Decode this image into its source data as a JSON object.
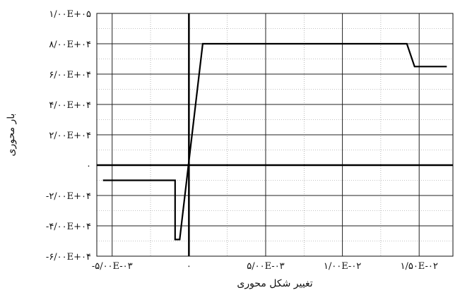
{
  "chart_data": {
    "type": "line",
    "title": "",
    "xlabel": "تغییر شکل محوری",
    "ylabel": "بار محوری",
    "xlim": [
      -0.006,
      0.0172
    ],
    "ylim": [
      -60000,
      100000
    ],
    "grid": true,
    "x_ticks": [
      {
        "value": -0.005,
        "label": "-۵/۰۰E-۰۳"
      },
      {
        "value": 0,
        "label": "۰"
      },
      {
        "value": 0.005,
        "label": "۵/۰۰E-۰۳"
      },
      {
        "value": 0.01,
        "label": "۱/۰۰E-۰۲"
      },
      {
        "value": 0.015,
        "label": "۱/۵۰E-۰۲"
      }
    ],
    "y_ticks": [
      {
        "value": 100000,
        "label": "۱/۰۰E+۰۵"
      },
      {
        "value": 80000,
        "label": "۸/۰۰E+۰۴"
      },
      {
        "value": 60000,
        "label": "۶/۰۰E+۰۴"
      },
      {
        "value": 40000,
        "label": "۴/۰۰E+۰۴"
      },
      {
        "value": 20000,
        "label": "۲/۰۰E+۰۴"
      },
      {
        "value": 0,
        "label": "۰"
      },
      {
        "value": -20000,
        "label": "-۲/۰۰E+۰۴"
      },
      {
        "value": -40000,
        "label": "-۴/۰۰E+۰۴"
      },
      {
        "value": -60000,
        "label": "-۶/۰۰E+۰۴"
      }
    ],
    "series": [
      {
        "points": [
          [
            -0.0056,
            -10000
          ],
          [
            -0.0009,
            -10000
          ],
          [
            -0.0009,
            -49000
          ],
          [
            -0.0006,
            -49000
          ],
          [
            0.0009,
            80000
          ],
          [
            0.0142,
            80000
          ],
          [
            0.0147,
            65000
          ],
          [
            0.0168,
            65000
          ]
        ]
      }
    ]
  }
}
